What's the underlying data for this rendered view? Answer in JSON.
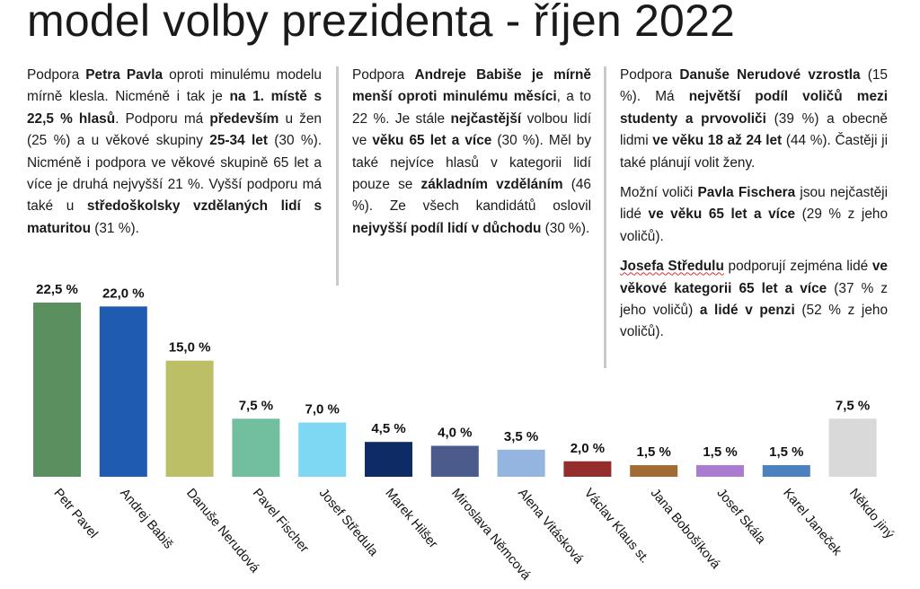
{
  "title": "model volby prezidenta - říjen 2022",
  "columns": [
    {
      "paragraphs": [
        [
          {
            "t": "Podpora "
          },
          {
            "t": "Petra Pavla",
            "b": true
          },
          {
            "t": " oproti minulému modelu mírně klesla. Nicméně i tak je "
          },
          {
            "t": "na 1. místě s 22,5 % hlasů",
            "b": true
          },
          {
            "t": ". Podporu má "
          },
          {
            "t": "především",
            "b": true
          },
          {
            "t": " u žen (25 %) a u věkové skupiny "
          },
          {
            "t": "25-34 let",
            "b": true
          },
          {
            "t": " (30 %). Nicméně i podpora ve věkové skupině 65 let a více je druhá nejvyšší 21 %. Vyšší podporu má také u "
          },
          {
            "t": "středoškolsky vzdělaných lidí s maturitou",
            "b": true
          },
          {
            "t": " (31 %)."
          }
        ]
      ]
    },
    {
      "paragraphs": [
        [
          {
            "t": "Podpora "
          },
          {
            "t": "Andreje Babiše je mírně menší oproti minulému měsíci",
            "b": true
          },
          {
            "t": ", a to 22 %. Je stále "
          },
          {
            "t": "nejčastější",
            "b": true
          },
          {
            "t": " volbou lidí ve "
          },
          {
            "t": "věku 65 let a více",
            "b": true
          },
          {
            "t": " (30 %). Měl by také nejvíce hlasů v kategorii lidí pouze se "
          },
          {
            "t": "základním vzděláním",
            "b": true
          },
          {
            "t": " (46 %). Ze všech kandidátů oslovil "
          },
          {
            "t": "nejvyšší podíl lidí v důchodu",
            "b": true
          },
          {
            "t": " (30 %)."
          }
        ]
      ]
    },
    {
      "paragraphs": [
        [
          {
            "t": "Podpora "
          },
          {
            "t": "Danuše Nerudové vzrostla",
            "b": true
          },
          {
            "t": " (15 %). Má "
          },
          {
            "t": "největší podíl voličů mezi studenty a prvovoliči",
            "b": true
          },
          {
            "t": " (39 %) a obecně lidmi "
          },
          {
            "t": "ve věku 18 až 24 let",
            "b": true
          },
          {
            "t": " (44 %). Častěji ji také plánují volit ženy."
          }
        ],
        [
          {
            "t": "Možní voliči "
          },
          {
            "t": "Pavla Fischera",
            "b": true
          },
          {
            "t": " jsou nejčastěji lidé "
          },
          {
            "t": "ve věku 65 let a více",
            "b": true
          },
          {
            "t": " (29 % z jeho voličů)."
          }
        ],
        [
          {
            "t": "Josefa Středulu",
            "b": true,
            "s": true
          },
          {
            "t": " podporují zejména lidé "
          },
          {
            "t": "ve věkové kategorii 65 let a více",
            "b": true
          },
          {
            "t": " (37 % z jeho voličů) "
          },
          {
            "t": "a lidé v penzi",
            "b": true
          },
          {
            "t": " (52 % z jeho voličů)."
          }
        ]
      ]
    }
  ],
  "chart_data": {
    "type": "bar",
    "categories": [
      "Petr Pavel",
      "Andrej Babiš",
      "Danuše Nerudová",
      "Pavel Fischer",
      "Josef Středula",
      "Marek Hilšer",
      "Miroslava Němcová",
      "Alena Vitásková",
      "Václav Klaus st.",
      "Jana Bobošíková",
      "Josef Skála",
      "Karel Janeček",
      "Někdo jiný"
    ],
    "values": [
      22.5,
      22.0,
      15.0,
      7.5,
      7.0,
      4.5,
      4.0,
      3.5,
      2.0,
      1.5,
      1.5,
      1.5,
      7.5
    ],
    "value_labels": [
      "22,5 %",
      "22,0 %",
      "15,0 %",
      "7,5 %",
      "7,0 %",
      "4,5 %",
      "4,0 %",
      "3,5 %",
      "2,0 %",
      "1,5 %",
      "1,5 %",
      "1,5 %",
      "7,5 %"
    ],
    "colors": [
      "#5a8f5f",
      "#1f5bb0",
      "#bcbf66",
      "#72bfa0",
      "#7fd8f3",
      "#0f2b66",
      "#4b5c8c",
      "#93b5df",
      "#962d2d",
      "#a36a33",
      "#a97cd1",
      "#4b81bf",
      "#d9d9d9"
    ],
    "ylim": [
      0,
      22.5
    ],
    "grid": false,
    "legend": "none"
  }
}
